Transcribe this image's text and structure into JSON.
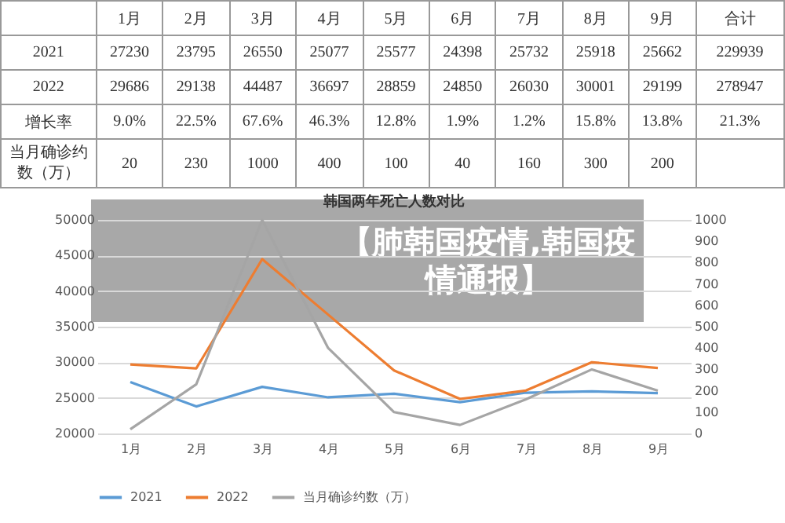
{
  "chart_data": {
    "type": "line",
    "title": "【肺韩国疫情,韩国疫情通报】",
    "subtitle": "韩国两年死亡人数对比",
    "categories": [
      "1月",
      "2月",
      "3月",
      "4月",
      "5月",
      "6月",
      "7月",
      "8月",
      "9月"
    ],
    "series": [
      {
        "name": "2021",
        "color": "#5b9bd5",
        "values": [
          27230,
          23795,
          26550,
          25077,
          25577,
          24398,
          25732,
          25918,
          25662
        ],
        "value_labels": [
          "27230",
          "23795",
          "26550",
          "25077",
          "25577",
          "24398",
          "25732",
          "25918",
          "25662"
        ]
      },
      {
        "name": "2022",
        "color": "#ed7d31",
        "values": [
          29686,
          29138,
          44487,
          36697,
          28859,
          24850,
          26030,
          30001,
          29199
        ],
        "value_labels": [
          "29686",
          "29138",
          "44487",
          "36697",
          "28859",
          "24850",
          "26030",
          "30001",
          "29199"
        ]
      },
      {
        "name": "当月确诊约数（万）",
        "color": "#a5a5a5",
        "axis": "y2",
        "values": [
          20,
          230,
          1000,
          400,
          100,
          40,
          160,
          300,
          200
        ],
        "value_labels": [
          "20",
          "230",
          "1000",
          "400",
          "100",
          "40",
          "160",
          "300",
          "200"
        ]
      }
    ],
    "ylim": [
      20000,
      50000
    ],
    "yticks": [
      20000,
      25000,
      30000,
      35000,
      40000,
      45000,
      50000
    ],
    "y2lim": [
      0,
      1000
    ],
    "y2ticks": [
      0,
      100,
      200,
      300,
      400,
      500,
      600,
      700,
      800,
      900,
      1000
    ],
    "grid": "y",
    "legend": "bottom",
    "annotations": [
      "合计",
      "229939",
      "278947",
      "增长率",
      "9.0%",
      "22.5%",
      "67.6%",
      "46.3%",
      "12.8%",
      "1.9%",
      "1.2%",
      "15.8%",
      "13.8%",
      "21.3%"
    ]
  }
}
